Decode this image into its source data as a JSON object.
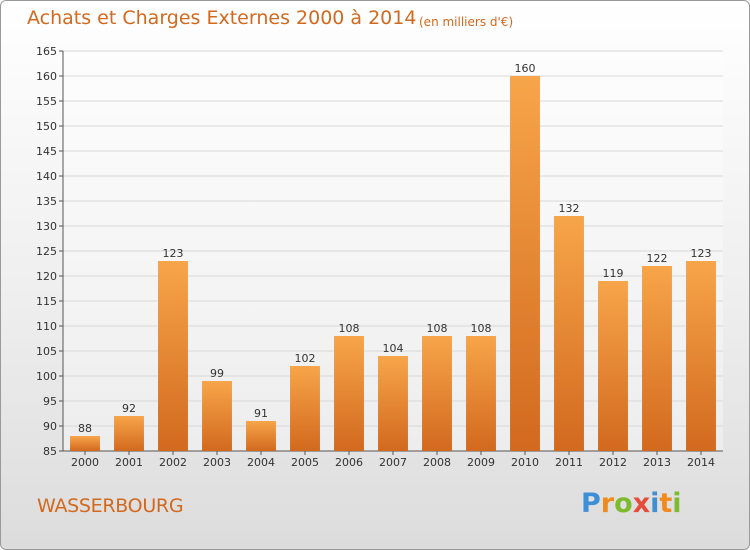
{
  "chart_data": {
    "type": "bar",
    "title": "Achats et Charges Externes 2000 à 2014",
    "subtitle": "(en milliers d'€)",
    "categories": [
      "2000",
      "2001",
      "2002",
      "2003",
      "2004",
      "2005",
      "2006",
      "2007",
      "2008",
      "2009",
      "2010",
      "2011",
      "2012",
      "2013",
      "2014"
    ],
    "values": [
      88,
      92,
      123,
      99,
      91,
      102,
      108,
      104,
      108,
      108,
      160,
      132,
      119,
      122,
      123
    ],
    "ylim": [
      85,
      165
    ],
    "yticks": [
      85,
      90,
      95,
      100,
      105,
      110,
      115,
      120,
      125,
      130,
      135,
      140,
      145,
      150,
      155,
      160,
      165
    ],
    "xlabel": "",
    "ylabel": "",
    "grid": true,
    "colors": {
      "bar_light": "#f7a54a",
      "bar_dark": "#d2691e",
      "grid": "#d8d8d8",
      "text": "#333333",
      "accent": "#d2691e"
    }
  },
  "footer": {
    "commune": "WASSERBOURG",
    "logo_letters": [
      "P",
      "r",
      "o",
      "x",
      "i",
      "t",
      "i"
    ],
    "logo_colors": [
      "#3f8fd6",
      "#f08a1c",
      "#7dbb2e",
      "#e84b3a",
      "#3f8fd6",
      "#f08a1c",
      "#7dbb2e"
    ]
  }
}
